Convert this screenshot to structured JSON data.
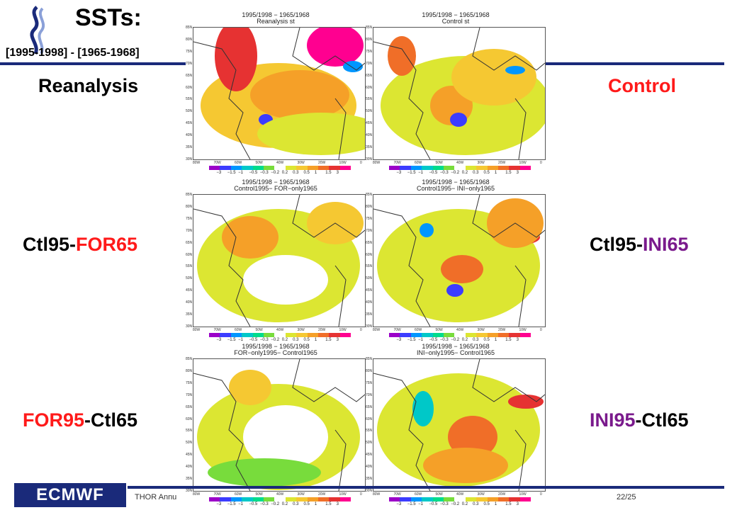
{
  "header": {
    "title": "SSTs:",
    "subtitle": "[1995-1998] - [1965-1968]"
  },
  "labels": {
    "reanalysis": "Reanalysis",
    "control": "Control",
    "ctl95_for65_a": "Ctl95-",
    "ctl95_for65_b": "FOR65",
    "ctl95_ini65_a": "Ctl95-",
    "ctl95_ini65_b": "INI65",
    "for95_ctl65_a": "FOR95",
    "for95_ctl65_b": "-Ctl65",
    "ini95_ctl65_a": "INI95",
    "ini95_ctl65_b": "-Ctl65"
  },
  "panels": [
    {
      "line1": "1995/1998 − 1965/1968",
      "line2": "Reanalysis st"
    },
    {
      "line1": "1995/1998 − 1965/1968",
      "line2": "Control st"
    },
    {
      "line1": "1995/1998 − 1965/1968",
      "line2": "Control1995− FOR−only1965"
    },
    {
      "line1": "1995/1998 − 1965/1968",
      "line2": "Control1995− INI−only1965"
    },
    {
      "line1": "1995/1998 − 1965/1968",
      "line2": "FOR−only1995− Control1965"
    },
    {
      "line1": "1995/1998 − 1965/1968",
      "line2": "INI−only1995− Control1965"
    }
  ],
  "map_axes": {
    "lat_ticks": [
      "85N",
      "80N",
      "75N",
      "70N",
      "65N",
      "60N",
      "55N",
      "50N",
      "45N",
      "40N",
      "35N",
      "30N"
    ],
    "lon_ticks": [
      "80W",
      "70W",
      "60W",
      "50W",
      "40W",
      "30W",
      "20W",
      "10W",
      "0"
    ]
  },
  "colorbar": {
    "ticks": [
      "−3",
      "−1.5",
      "−1",
      "−0.5",
      "−0.3",
      "−0.2",
      "0.2",
      "0.3",
      "0.5",
      "1",
      "1.5",
      "3"
    ],
    "colors": [
      "#9b00c8",
      "#3c3cff",
      "#0096ff",
      "#00c8c8",
      "#00dc8c",
      "#78dc3c",
      "#ffffff",
      "#dce632",
      "#f5c832",
      "#f5a028",
      "#f06e28",
      "#e63232",
      "#ff0090"
    ]
  },
  "footer": {
    "logo": "ECMWF",
    "text": "THOR Annu",
    "page": "22/25"
  },
  "colors": {
    "red": "#ff1a1a",
    "purple": "#7a1a8c",
    "navy": "#1a2a7a"
  }
}
